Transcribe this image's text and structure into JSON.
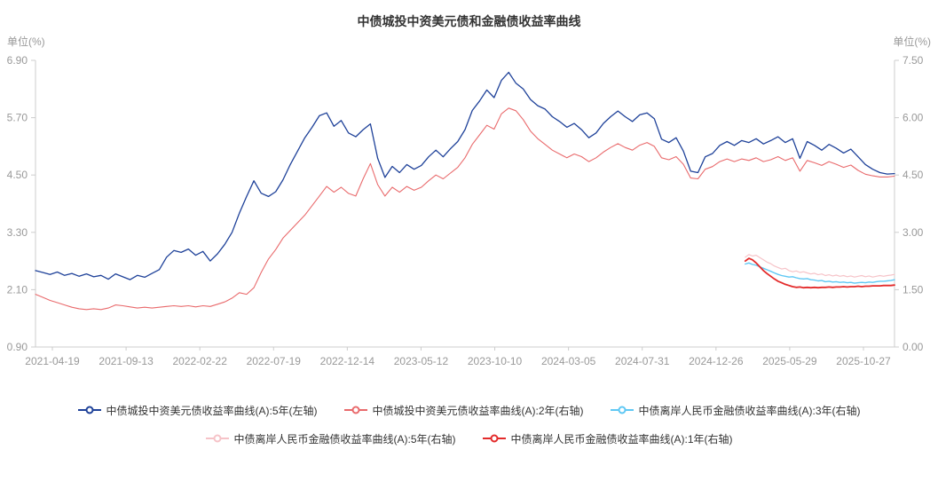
{
  "title": "中债城投中资美元债和金融债收益率曲线",
  "left_axis": {
    "unit_label": "单位(%)",
    "min": 0.9,
    "max": 6.9,
    "ticks": [
      "6.90",
      "5.70",
      "4.50",
      "3.30",
      "2.10",
      "0.90"
    ]
  },
  "right_axis": {
    "unit_label": "单位(%)",
    "min": 0.0,
    "max": 7.5,
    "ticks": [
      "7.50",
      "6.00",
      "4.50",
      "3.00",
      "1.50",
      "0.00"
    ]
  },
  "x_axis": {
    "labels": [
      "2021-04-19",
      "2021-09-13",
      "2022-02-22",
      "2022-07-19",
      "2022-12-14",
      "2023-05-12",
      "2023-10-10",
      "2024-03-05",
      "2024-07-31",
      "2024-12-26",
      "2025-05-29",
      "2025-10-27"
    ]
  },
  "colors": {
    "axis_line": "#cccccc",
    "tick_text": "#999999",
    "title_text": "#333333",
    "legend_text": "#333333"
  },
  "chart_data": {
    "type": "line",
    "title": "中债城投中资美元债和金融债收益率曲线",
    "x_range": [
      "2021-04-19",
      "2025-10-27"
    ],
    "left_ylim": [
      0.9,
      6.9
    ],
    "right_ylim": [
      0.0,
      7.5
    ],
    "grid": false,
    "legend_position": "bottom",
    "legend_rows": [
      [
        0,
        1,
        2
      ],
      [
        3,
        4
      ]
    ],
    "series": [
      {
        "name": "中债城投中资美元债收益率曲线(A):5年(左轴)",
        "axis": "left",
        "color": "#1e4199",
        "width": 1.3,
        "start": "2021-04-19",
        "interval_days": 14,
        "values": [
          2.5,
          2.46,
          2.42,
          2.47,
          2.4,
          2.44,
          2.38,
          2.43,
          2.37,
          2.4,
          2.32,
          2.43,
          2.37,
          2.31,
          2.4,
          2.36,
          2.44,
          2.52,
          2.78,
          2.92,
          2.88,
          2.95,
          2.82,
          2.9,
          2.7,
          2.85,
          3.05,
          3.3,
          3.7,
          4.05,
          4.38,
          4.12,
          4.05,
          4.15,
          4.4,
          4.72,
          5.0,
          5.28,
          5.5,
          5.74,
          5.8,
          5.52,
          5.64,
          5.38,
          5.3,
          5.45,
          5.57,
          4.85,
          4.45,
          4.68,
          4.55,
          4.72,
          4.62,
          4.7,
          4.88,
          5.02,
          4.88,
          5.05,
          5.2,
          5.45,
          5.85,
          6.05,
          6.28,
          6.12,
          6.48,
          6.65,
          6.42,
          6.3,
          6.08,
          5.95,
          5.88,
          5.72,
          5.62,
          5.5,
          5.58,
          5.45,
          5.28,
          5.38,
          5.58,
          5.72,
          5.84,
          5.72,
          5.62,
          5.76,
          5.8,
          5.68,
          5.25,
          5.18,
          5.28,
          5.0,
          4.58,
          4.55,
          4.88,
          4.95,
          5.12,
          5.2,
          5.12,
          5.22,
          5.18,
          5.26,
          5.15,
          5.22,
          5.3,
          5.18,
          5.26,
          4.85,
          5.2,
          5.12,
          5.02,
          5.14,
          5.06,
          4.96,
          5.04,
          4.88,
          4.72,
          4.62,
          4.55,
          4.52,
          4.53
        ]
      },
      {
        "name": "中债城投中资美元债收益率曲线(A):2年(右轴)",
        "axis": "right",
        "color": "#e96a6c",
        "width": 1.1,
        "start": "2021-04-19",
        "interval_days": 14,
        "values": [
          1.38,
          1.3,
          1.22,
          1.16,
          1.1,
          1.04,
          1.0,
          0.98,
          1.0,
          0.98,
          1.02,
          1.1,
          1.08,
          1.05,
          1.02,
          1.04,
          1.02,
          1.04,
          1.06,
          1.08,
          1.06,
          1.08,
          1.05,
          1.08,
          1.06,
          1.12,
          1.18,
          1.28,
          1.42,
          1.38,
          1.55,
          1.95,
          2.3,
          2.55,
          2.85,
          3.05,
          3.25,
          3.45,
          3.7,
          3.95,
          4.2,
          4.05,
          4.18,
          4.02,
          3.95,
          4.4,
          4.8,
          4.25,
          3.95,
          4.18,
          4.05,
          4.2,
          4.1,
          4.18,
          4.35,
          4.5,
          4.4,
          4.55,
          4.7,
          4.95,
          5.3,
          5.55,
          5.8,
          5.7,
          6.1,
          6.25,
          6.18,
          5.95,
          5.65,
          5.45,
          5.3,
          5.15,
          5.05,
          4.95,
          5.05,
          4.98,
          4.85,
          4.95,
          5.1,
          5.22,
          5.32,
          5.22,
          5.15,
          5.28,
          5.35,
          5.25,
          4.95,
          4.9,
          4.98,
          4.78,
          4.42,
          4.4,
          4.65,
          4.72,
          4.85,
          4.92,
          4.85,
          4.92,
          4.88,
          4.95,
          4.85,
          4.9,
          4.98,
          4.88,
          4.95,
          4.6,
          4.88,
          4.82,
          4.75,
          4.85,
          4.78,
          4.7,
          4.76,
          4.62,
          4.52,
          4.48,
          4.45,
          4.45,
          4.47
        ]
      },
      {
        "name": "中债离岸人民币金融债收益率曲线(A):3年(右轴)",
        "axis": "right",
        "color": "#5fc8f4",
        "width": 1.4,
        "start": "2025-01-13",
        "interval_days": 7,
        "values": [
          2.17,
          2.2,
          2.16,
          2.14,
          2.1,
          2.06,
          2.02,
          1.98,
          1.94,
          1.9,
          1.87,
          1.85,
          1.83,
          1.84,
          1.81,
          1.79,
          1.78,
          1.79,
          1.76,
          1.75,
          1.73,
          1.74,
          1.71,
          1.72,
          1.7,
          1.71,
          1.69,
          1.7,
          1.68,
          1.69,
          1.67,
          1.68,
          1.69,
          1.68,
          1.7,
          1.69,
          1.71,
          1.72,
          1.72,
          1.73,
          1.74,
          1.76
        ]
      },
      {
        "name": "中债离岸人民币金融债收益率曲线(A):5年(右轴)",
        "axis": "right",
        "color": "#f6c3c8",
        "width": 1.2,
        "start": "2025-01-13",
        "interval_days": 7,
        "values": [
          2.35,
          2.42,
          2.38,
          2.4,
          2.34,
          2.28,
          2.22,
          2.18,
          2.12,
          2.08,
          2.04,
          2.06,
          2.0,
          1.97,
          1.99,
          1.95,
          1.97,
          1.94,
          1.91,
          1.93,
          1.89,
          1.91,
          1.87,
          1.89,
          1.86,
          1.88,
          1.85,
          1.87,
          1.84,
          1.86,
          1.83,
          1.85,
          1.87,
          1.84,
          1.86,
          1.83,
          1.85,
          1.87,
          1.85,
          1.87,
          1.88,
          1.9
        ]
      },
      {
        "name": "中债离岸人民币金融债收益率曲线(A):1年(右轴)",
        "axis": "right",
        "color": "#e32b2b",
        "width": 1.8,
        "start": "2025-01-13",
        "interval_days": 7,
        "values": [
          2.25,
          2.32,
          2.28,
          2.2,
          2.1,
          2.0,
          1.92,
          1.85,
          1.78,
          1.72,
          1.68,
          1.64,
          1.61,
          1.58,
          1.56,
          1.57,
          1.55,
          1.56,
          1.55,
          1.56,
          1.55,
          1.56,
          1.56,
          1.57,
          1.56,
          1.57,
          1.57,
          1.58,
          1.57,
          1.58,
          1.58,
          1.59,
          1.58,
          1.59,
          1.59,
          1.6,
          1.6,
          1.6,
          1.61,
          1.61,
          1.61,
          1.62
        ]
      }
    ]
  }
}
